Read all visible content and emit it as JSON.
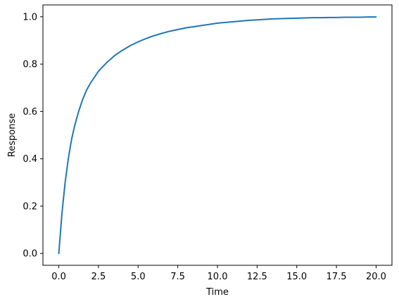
{
  "chart_data": {
    "type": "line",
    "xlabel": "Time",
    "ylabel": "Response",
    "xlim": [
      -1.0,
      21.0
    ],
    "ylim": [
      -0.05,
      1.05
    ],
    "xticks": [
      0.0,
      2.5,
      5.0,
      7.5,
      10.0,
      12.5,
      15.0,
      17.5,
      20.0
    ],
    "xtick_labels": [
      "0.0",
      "2.5",
      "5.0",
      "7.5",
      "10.0",
      "12.5",
      "15.0",
      "17.5",
      "20.0"
    ],
    "yticks": [
      0.0,
      0.2,
      0.4,
      0.6,
      0.8,
      1.0
    ],
    "ytick_labels": [
      "0.0",
      "0.2",
      "0.4",
      "0.6",
      "0.8",
      "1.0"
    ],
    "grid": false,
    "legend": false,
    "series": [
      {
        "color": "#1f77b4",
        "x": [
          0.0,
          0.2,
          0.4,
          0.6,
          0.8,
          1.0,
          1.25,
          1.5,
          1.75,
          2.0,
          2.5,
          3.0,
          3.5,
          4.0,
          4.5,
          5.0,
          5.5,
          6.0,
          6.5,
          7.0,
          7.5,
          8.0,
          8.5,
          9.0,
          9.5,
          10.0,
          10.5,
          11.0,
          11.5,
          12.0,
          12.5,
          13.0,
          13.5,
          14.0,
          14.5,
          15.0,
          15.5,
          16.0,
          16.5,
          17.0,
          17.5,
          18.0,
          18.5,
          19.0,
          19.5,
          20.0
        ],
        "y": [
          0.0,
          0.17,
          0.3,
          0.4,
          0.48,
          0.54,
          0.6,
          0.65,
          0.69,
          0.72,
          0.77,
          0.805,
          0.835,
          0.858,
          0.878,
          0.894,
          0.908,
          0.92,
          0.93,
          0.939,
          0.946,
          0.953,
          0.958,
          0.963,
          0.968,
          0.973,
          0.976,
          0.979,
          0.982,
          0.985,
          0.987,
          0.989,
          0.991,
          0.992,
          0.993,
          0.994,
          0.995,
          0.996,
          0.996,
          0.997,
          0.997,
          0.998,
          0.998,
          0.998,
          0.999,
          0.999
        ]
      }
    ]
  }
}
